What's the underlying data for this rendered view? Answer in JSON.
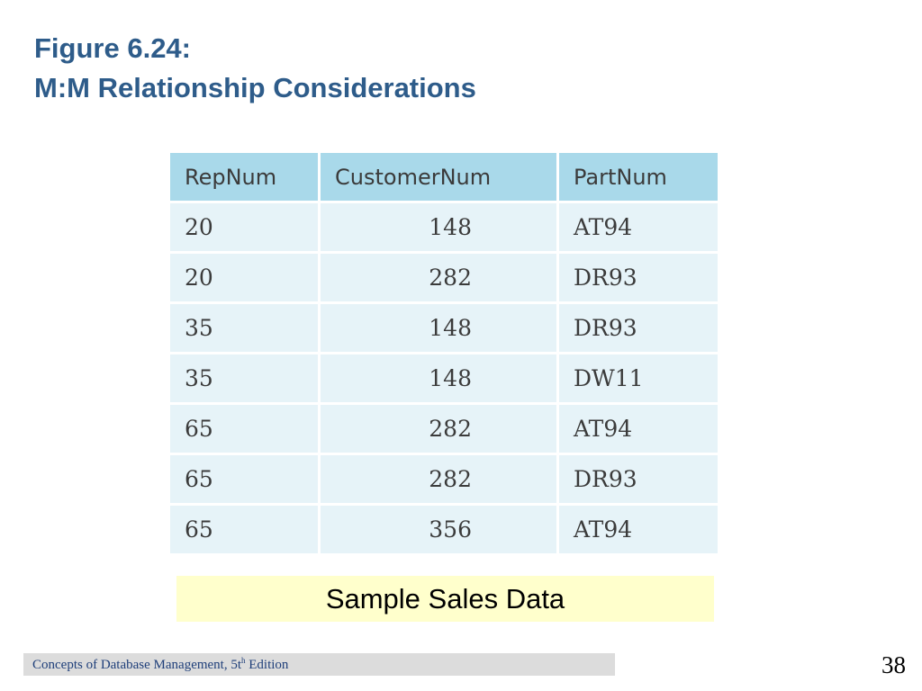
{
  "title": {
    "line1": "Figure 6.24:",
    "line2": "M:M Relationship Considerations"
  },
  "table": {
    "headers": [
      "RepNum",
      "CustomerNum",
      "PartNum"
    ],
    "rows": [
      [
        "20",
        "148",
        "AT94"
      ],
      [
        "20",
        "282",
        "DR93"
      ],
      [
        "35",
        "148",
        "DR93"
      ],
      [
        "35",
        "148",
        "DW11"
      ],
      [
        "65",
        "282",
        "AT94"
      ],
      [
        "65",
        "282",
        "DR93"
      ],
      [
        "65",
        "356",
        "AT94"
      ]
    ]
  },
  "caption": "Sample Sales Data",
  "footer": {
    "text_before": "Concepts of Database Management, 5t",
    "superscript": "h",
    "text_after": " Edition"
  },
  "page_number": "38",
  "colors": {
    "title": "#2e5c8a",
    "header_fill": "#a9d9ea",
    "row_fill": "#e6f3f8",
    "caption_fill": "#ffffcc",
    "footer_fill": "#dcdcdc"
  }
}
